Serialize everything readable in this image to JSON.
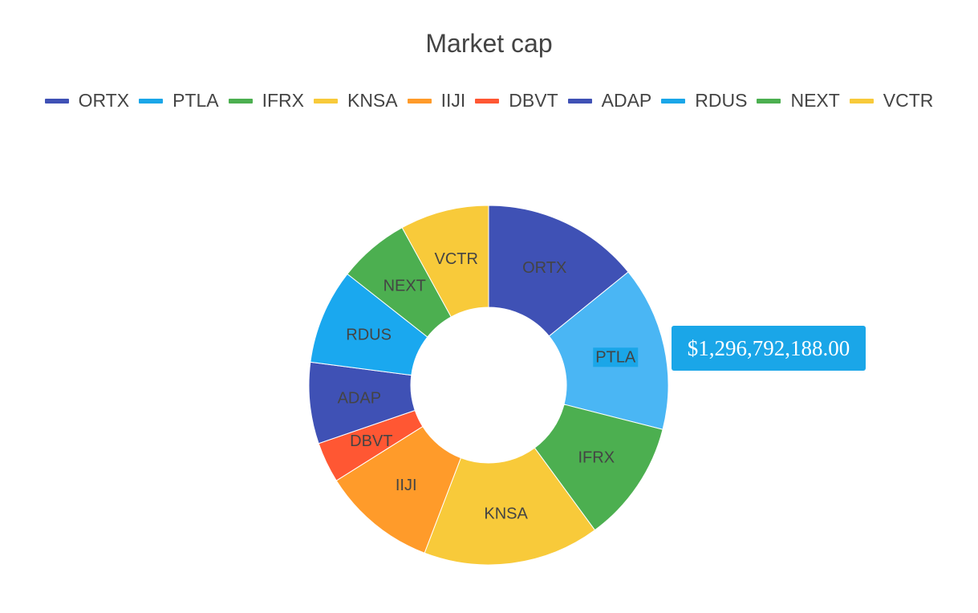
{
  "chart_data": {
    "type": "pie",
    "variant": "donut",
    "title": "Market cap",
    "legend_position": "top",
    "categories": [
      "ORTX",
      "PTLA",
      "IFRX",
      "KNSA",
      "IIJI",
      "DBVT",
      "ADAP",
      "RDUS",
      "NEXT",
      "VCTR"
    ],
    "values": [
      1240000000,
      1296792188,
      960000000,
      1390000000,
      900000000,
      320000000,
      640000000,
      750000000,
      560000000,
      700000000
    ],
    "colors": [
      "#3f51b5",
      "#4ab6f4",
      "#4caf50",
      "#f8ca3a",
      "#ff9b2a",
      "#ff5733",
      "#3f51b5",
      "#1aa8ef",
      "#4caf50",
      "#f8ca3a"
    ],
    "legend_colors": [
      "#3f51b5",
      "#1aa6e8",
      "#4caf50",
      "#f8ca3a",
      "#ff9b2a",
      "#ff5733",
      "#3f51b5",
      "#1aa6e8",
      "#4caf50",
      "#f8ca3a"
    ],
    "highlighted": "PTLA",
    "tooltip": "$1,296,792,188.00"
  }
}
